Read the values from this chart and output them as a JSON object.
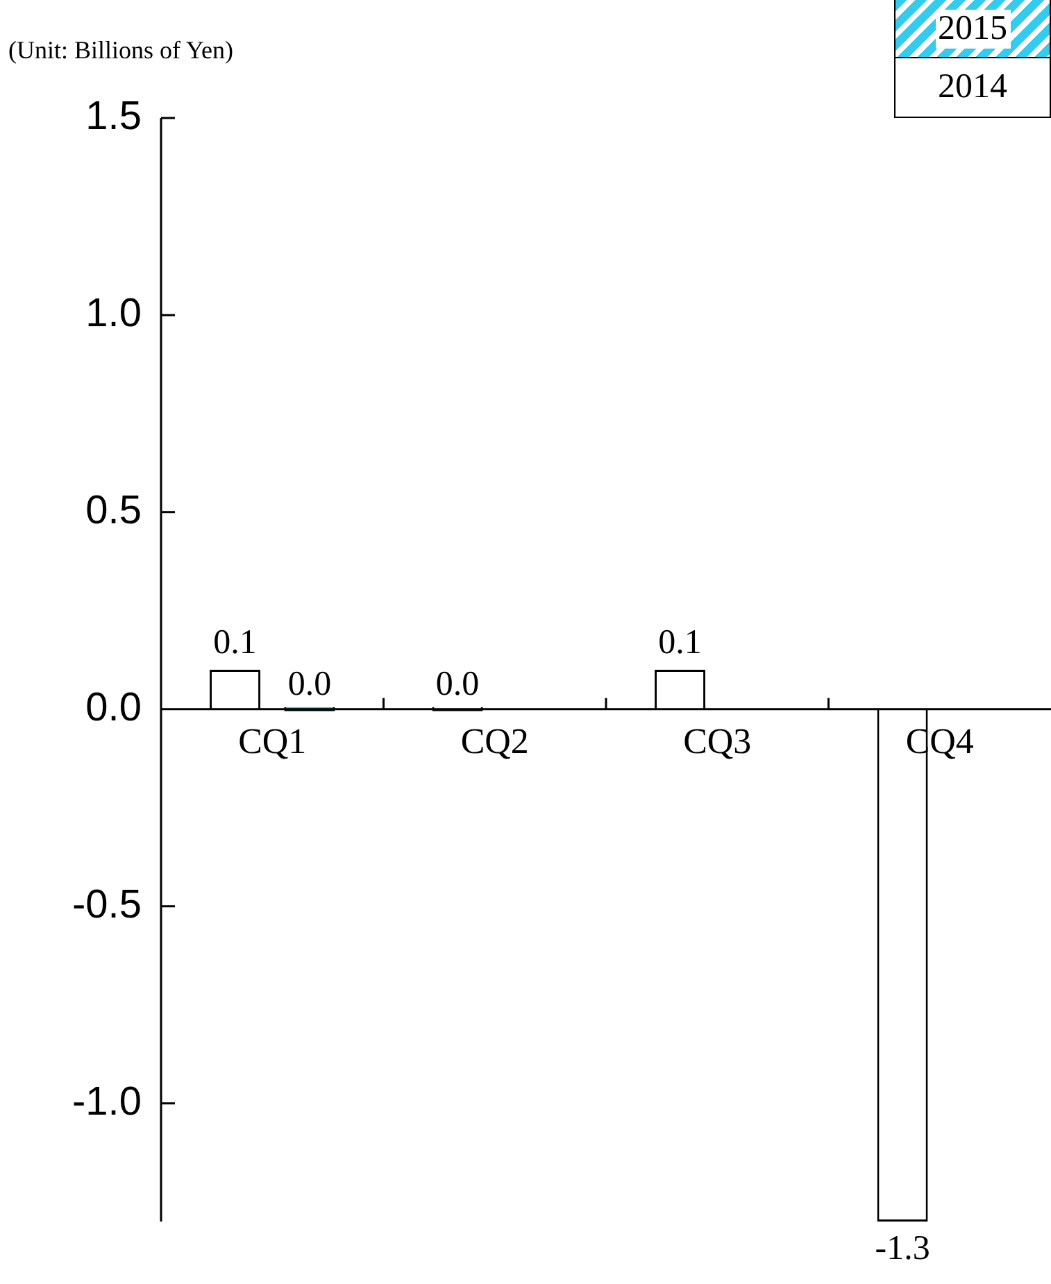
{
  "chart_data": {
    "type": "bar",
    "categories": [
      "CQ1",
      "CQ2",
      "CQ3",
      "CQ4"
    ],
    "series": [
      {
        "name": "2014",
        "color": "#ffffff",
        "values": [
          0.1,
          0.0,
          0.1,
          -1.3
        ],
        "value_labels": [
          "0.1",
          "0.0",
          "0.1",
          "-1.3"
        ]
      },
      {
        "name": "2015",
        "color": "#33ccee",
        "values": [
          0.0,
          null,
          null,
          null
        ],
        "value_labels": [
          "0.0",
          null,
          null,
          null
        ]
      }
    ],
    "ylim": [
      -1.3,
      1.5
    ],
    "yticks": [
      {
        "value": 1.5,
        "label": "1.5"
      },
      {
        "value": 1.0,
        "label": "1.0"
      },
      {
        "value": 0.5,
        "label": "0.5"
      },
      {
        "value": 0,
        "label": "0.0"
      },
      {
        "value": -0.5,
        "label": "-0.5"
      },
      {
        "value": -1.0,
        "label": "-1.0"
      }
    ],
    "legend": "top right",
    "grid": false,
    "annotations": [
      "(Unit: Billions of Yen)"
    ]
  }
}
